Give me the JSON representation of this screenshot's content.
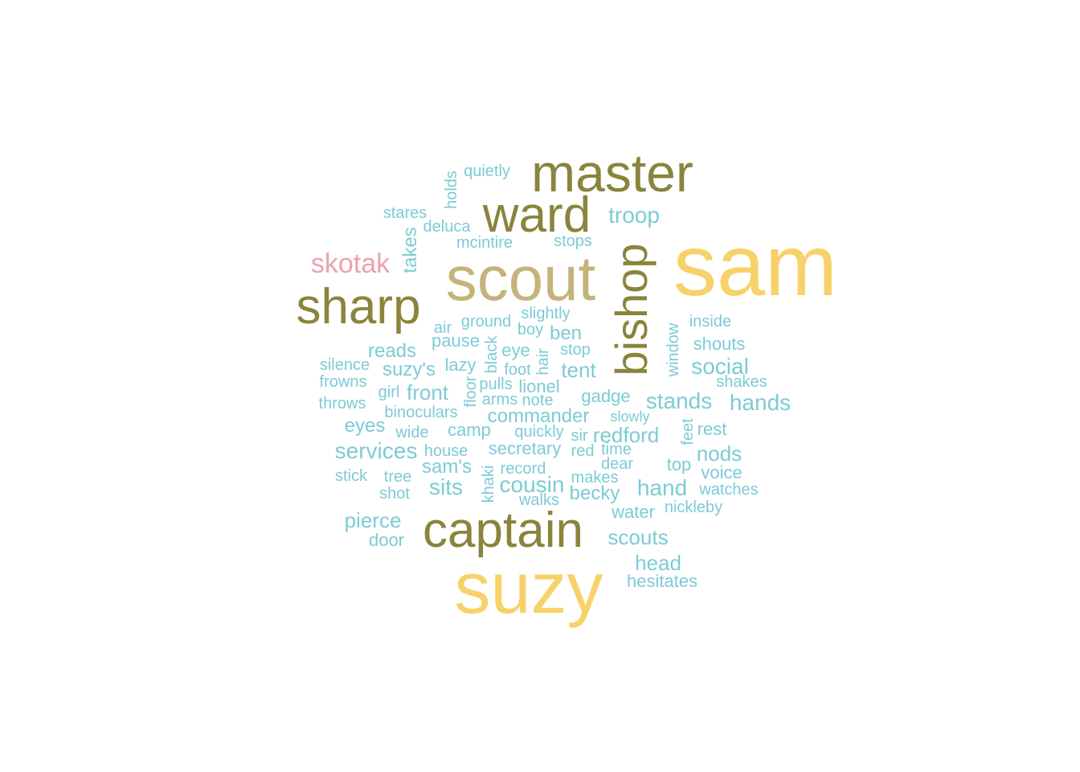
{
  "palette": {
    "top": "#f7d26a",
    "second": "#c4b47a",
    "third": "#8a843c",
    "fourth": "#eba2ad",
    "rest": "#7ccbd6"
  },
  "words": [
    {
      "text": "sam",
      "tier": "top"
    },
    {
      "text": "suzy",
      "tier": "top"
    },
    {
      "text": "scout",
      "tier": "second"
    },
    {
      "text": "master",
      "tier": "third"
    },
    {
      "text": "ward",
      "tier": "third"
    },
    {
      "text": "sharp",
      "tier": "third"
    },
    {
      "text": "captain",
      "tier": "third"
    },
    {
      "text": "bishop",
      "tier": "third"
    },
    {
      "text": "skotak",
      "tier": "fourth"
    },
    {
      "text": "troop",
      "tier": "rest"
    },
    {
      "text": "quietly",
      "tier": "rest"
    },
    {
      "text": "holds",
      "tier": "rest"
    },
    {
      "text": "stares",
      "tier": "rest"
    },
    {
      "text": "deluca",
      "tier": "rest"
    },
    {
      "text": "takes",
      "tier": "rest"
    },
    {
      "text": "mcintire",
      "tier": "rest"
    },
    {
      "text": "stops",
      "tier": "rest"
    },
    {
      "text": "slightly",
      "tier": "rest"
    },
    {
      "text": "ground",
      "tier": "rest"
    },
    {
      "text": "air",
      "tier": "rest"
    },
    {
      "text": "boy",
      "tier": "rest"
    },
    {
      "text": "ben",
      "tier": "rest"
    },
    {
      "text": "inside",
      "tier": "rest"
    },
    {
      "text": "window",
      "tier": "rest"
    },
    {
      "text": "shouts",
      "tier": "rest"
    },
    {
      "text": "pause",
      "tier": "rest"
    },
    {
      "text": "black",
      "tier": "rest"
    },
    {
      "text": "eye",
      "tier": "rest"
    },
    {
      "text": "hair",
      "tier": "rest"
    },
    {
      "text": "stop",
      "tier": "rest"
    },
    {
      "text": "reads",
      "tier": "rest"
    },
    {
      "text": "silence",
      "tier": "rest"
    },
    {
      "text": "lazy",
      "tier": "rest"
    },
    {
      "text": "suzy's",
      "tier": "rest"
    },
    {
      "text": "foot",
      "tier": "rest"
    },
    {
      "text": "tent",
      "tier": "rest"
    },
    {
      "text": "social",
      "tier": "rest"
    },
    {
      "text": "frowns",
      "tier": "rest"
    },
    {
      "text": "floor",
      "tier": "rest"
    },
    {
      "text": "pulls",
      "tier": "rest"
    },
    {
      "text": "lionel",
      "tier": "rest"
    },
    {
      "text": "shakes",
      "tier": "rest"
    },
    {
      "text": "girl",
      "tier": "rest"
    },
    {
      "text": "front",
      "tier": "rest"
    },
    {
      "text": "arms",
      "tier": "rest"
    },
    {
      "text": "note",
      "tier": "rest"
    },
    {
      "text": "gadge",
      "tier": "rest"
    },
    {
      "text": "throws",
      "tier": "rest"
    },
    {
      "text": "stands",
      "tier": "rest"
    },
    {
      "text": "hands",
      "tier": "rest"
    },
    {
      "text": "binoculars",
      "tier": "rest"
    },
    {
      "text": "commander",
      "tier": "rest"
    },
    {
      "text": "slowly",
      "tier": "rest"
    },
    {
      "text": "eyes",
      "tier": "rest"
    },
    {
      "text": "feet",
      "tier": "rest"
    },
    {
      "text": "rest",
      "tier": "rest"
    },
    {
      "text": "wide",
      "tier": "rest"
    },
    {
      "text": "camp",
      "tier": "rest"
    },
    {
      "text": "quickly",
      "tier": "rest"
    },
    {
      "text": "sir",
      "tier": "rest"
    },
    {
      "text": "redford",
      "tier": "rest"
    },
    {
      "text": "services",
      "tier": "rest"
    },
    {
      "text": "house",
      "tier": "rest"
    },
    {
      "text": "secretary",
      "tier": "rest"
    },
    {
      "text": "red",
      "tier": "rest"
    },
    {
      "text": "time",
      "tier": "rest"
    },
    {
      "text": "nods",
      "tier": "rest"
    },
    {
      "text": "sam's",
      "tier": "rest"
    },
    {
      "text": "khaki",
      "tier": "rest"
    },
    {
      "text": "record",
      "tier": "rest"
    },
    {
      "text": "dear",
      "tier": "rest"
    },
    {
      "text": "top",
      "tier": "rest"
    },
    {
      "text": "voice",
      "tier": "rest"
    },
    {
      "text": "stick",
      "tier": "rest"
    },
    {
      "text": "tree",
      "tier": "rest"
    },
    {
      "text": "sits",
      "tier": "rest"
    },
    {
      "text": "cousin",
      "tier": "rest"
    },
    {
      "text": "makes",
      "tier": "rest"
    },
    {
      "text": "hand",
      "tier": "rest"
    },
    {
      "text": "watches",
      "tier": "rest"
    },
    {
      "text": "shot",
      "tier": "rest"
    },
    {
      "text": "becky",
      "tier": "rest"
    },
    {
      "text": "walks",
      "tier": "rest"
    },
    {
      "text": "nickleby",
      "tier": "rest"
    },
    {
      "text": "water",
      "tier": "rest"
    },
    {
      "text": "pierce",
      "tier": "rest"
    },
    {
      "text": "scouts",
      "tier": "rest"
    },
    {
      "text": "door",
      "tier": "rest"
    },
    {
      "text": "head",
      "tier": "rest"
    },
    {
      "text": "hesitates",
      "tier": "rest"
    }
  ]
}
